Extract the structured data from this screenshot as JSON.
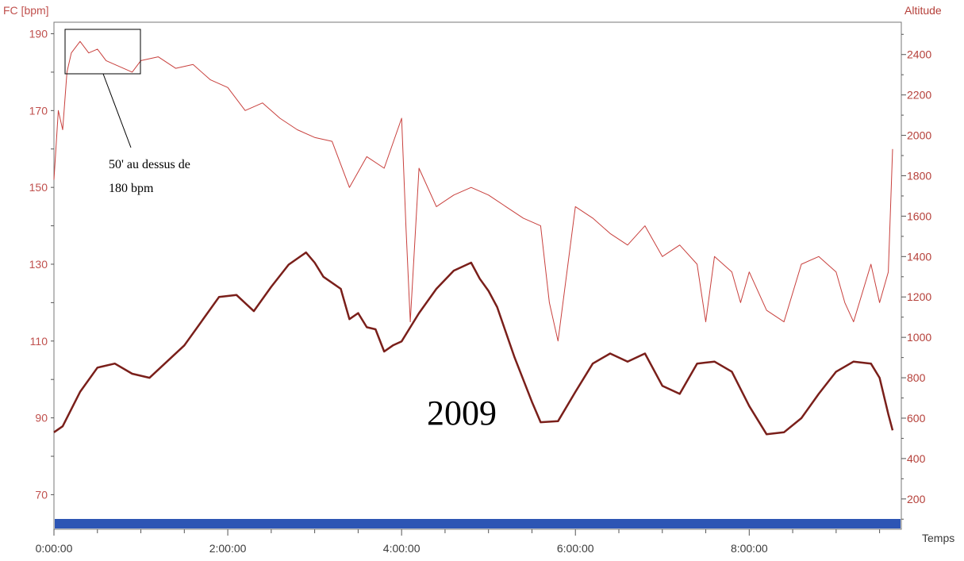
{
  "chart_data": {
    "type": "line",
    "x_axis": {
      "title": "Temps",
      "range_seconds": [
        0,
        35100
      ],
      "tick_labels": [
        "0:00:00",
        "2:00:00",
        "4:00:00",
        "6:00:00",
        "8:00:00"
      ],
      "tick_values_seconds": [
        0,
        7200,
        14400,
        21600,
        28800
      ]
    },
    "y_left": {
      "title": "FC [bpm]",
      "range": [
        61,
        193
      ],
      "tick_labels": [
        "190",
        "170",
        "150",
        "130",
        "110",
        "90",
        "70"
      ],
      "tick_values": [
        190,
        170,
        150,
        130,
        110,
        90,
        70
      ]
    },
    "y_right": {
      "title": "Altitude",
      "range": [
        50,
        2560
      ],
      "tick_labels": [
        "2400",
        "2200",
        "2000",
        "1800",
        "1600",
        "1400",
        "1200",
        "1000",
        "800",
        "600",
        "400",
        "200"
      ],
      "tick_values": [
        2400,
        2200,
        2000,
        1800,
        1600,
        1400,
        1200,
        1000,
        800,
        600,
        400,
        200
      ]
    },
    "series": [
      {
        "name": "FC",
        "axis": "left",
        "color": "#c8403d",
        "x_hours": [
          0.0,
          0.05,
          0.1,
          0.15,
          0.2,
          0.3,
          0.4,
          0.5,
          0.6,
          0.7,
          0.8,
          0.9,
          1.0,
          1.2,
          1.4,
          1.6,
          1.8,
          2.0,
          2.2,
          2.4,
          2.6,
          2.8,
          3.0,
          3.2,
          3.4,
          3.6,
          3.8,
          4.0,
          4.05,
          4.1,
          4.2,
          4.4,
          4.6,
          4.8,
          5.0,
          5.2,
          5.4,
          5.6,
          5.7,
          5.8,
          6.0,
          6.2,
          6.4,
          6.6,
          6.8,
          7.0,
          7.2,
          7.4,
          7.5,
          7.6,
          7.8,
          7.9,
          8.0,
          8.2,
          8.4,
          8.6,
          8.8,
          9.0,
          9.1,
          9.2,
          9.4,
          9.5,
          9.6,
          9.65
        ],
        "values": [
          152,
          170,
          165,
          180,
          185,
          188,
          185,
          186,
          183,
          182,
          181,
          180,
          183,
          184,
          181,
          182,
          178,
          176,
          170,
          172,
          168,
          165,
          163,
          162,
          150,
          158,
          155,
          168,
          140,
          115,
          155,
          145,
          148,
          150,
          148,
          145,
          142,
          140,
          120,
          110,
          145,
          142,
          138,
          135,
          140,
          132,
          135,
          130,
          115,
          132,
          128,
          120,
          128,
          118,
          115,
          130,
          132,
          128,
          120,
          115,
          130,
          120,
          128,
          160
        ]
      },
      {
        "name": "Altitude",
        "axis": "right",
        "color": "#7a1f1a",
        "x_hours": [
          0.0,
          0.1,
          0.3,
          0.5,
          0.7,
          0.9,
          1.1,
          1.3,
          1.5,
          1.7,
          1.9,
          2.1,
          2.3,
          2.5,
          2.7,
          2.9,
          3.0,
          3.1,
          3.3,
          3.4,
          3.5,
          3.6,
          3.7,
          3.8,
          3.9,
          4.0,
          4.2,
          4.4,
          4.6,
          4.8,
          4.9,
          5.0,
          5.1,
          5.3,
          5.5,
          5.6,
          5.8,
          6.0,
          6.2,
          6.4,
          6.6,
          6.8,
          7.0,
          7.2,
          7.4,
          7.6,
          7.8,
          8.0,
          8.2,
          8.4,
          8.6,
          8.8,
          9.0,
          9.2,
          9.4,
          9.5,
          9.6,
          9.65
        ],
        "values": [
          530,
          560,
          730,
          850,
          870,
          820,
          800,
          880,
          960,
          1080,
          1200,
          1210,
          1130,
          1250,
          1360,
          1420,
          1370,
          1300,
          1240,
          1090,
          1120,
          1050,
          1040,
          930,
          960,
          980,
          1120,
          1240,
          1330,
          1370,
          1290,
          1230,
          1150,
          900,
          680,
          580,
          585,
          730,
          870,
          920,
          880,
          920,
          760,
          720,
          870,
          880,
          830,
          660,
          520,
          530,
          600,
          720,
          830,
          880,
          870,
          800,
          620,
          540
        ]
      }
    ],
    "annotations": [
      {
        "text_line1": "50' au dessus de",
        "text_line2": "180 bpm"
      },
      {
        "text": "2009"
      }
    ],
    "grid": false,
    "legend": "none"
  },
  "colors": {
    "fc_line": "#c8403d",
    "altitude_line": "#7a1f1a",
    "ground_band": "#2d55b4",
    "left_axis_text": "#c0504d",
    "right_axis_text": "#b5403a"
  }
}
